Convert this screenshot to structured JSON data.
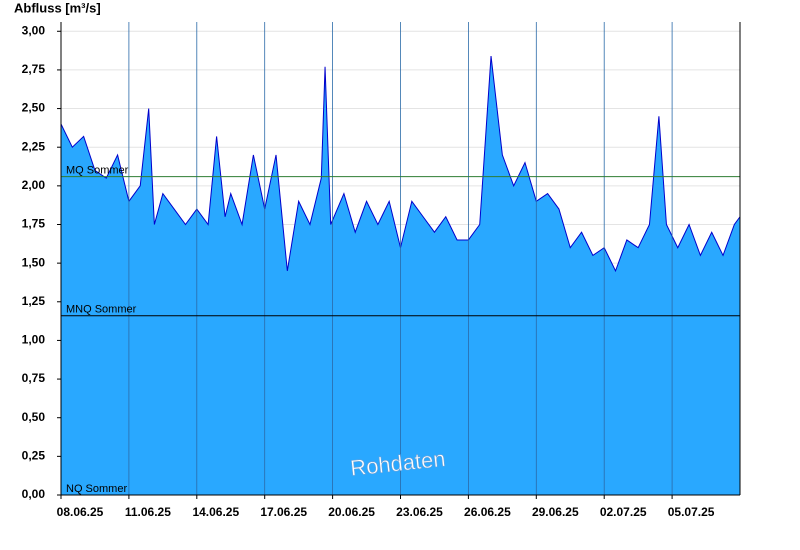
{
  "chart_data": {
    "type": "area",
    "y_label": "Abfluss [m³/s]",
    "watermark": "Rohdaten",
    "fill_color": "#29a8ff",
    "line_color": "#0000cc",
    "grid": true,
    "x": [
      "2025-06-08T00:00",
      "2025-06-08T12:00",
      "2025-06-09T00:00",
      "2025-06-09T12:00",
      "2025-06-10T00:00",
      "2025-06-10T12:00",
      "2025-06-11T00:00",
      "2025-06-11T12:00",
      "2025-06-11T21:00",
      "2025-06-12T03:00",
      "2025-06-12T12:00",
      "2025-06-13T00:00",
      "2025-06-13T12:00",
      "2025-06-14T00:00",
      "2025-06-14T12:00",
      "2025-06-14T21:00",
      "2025-06-15T06:00",
      "2025-06-15T12:00",
      "2025-06-16T00:00",
      "2025-06-16T12:00",
      "2025-06-17T00:00",
      "2025-06-17T12:00",
      "2025-06-18T00:00",
      "2025-06-18T12:00",
      "2025-06-19T00:00",
      "2025-06-19T12:00",
      "2025-06-19T16:00",
      "2025-06-19T22:00",
      "2025-06-20T12:00",
      "2025-06-21T00:00",
      "2025-06-21T12:00",
      "2025-06-22T00:00",
      "2025-06-22T12:00",
      "2025-06-23T00:00",
      "2025-06-23T12:00",
      "2025-06-24T00:00",
      "2025-06-24T12:00",
      "2025-06-25T00:00",
      "2025-06-25T12:00",
      "2025-06-26T00:00",
      "2025-06-26T12:00",
      "2025-06-27T00:00",
      "2025-06-27T12:00",
      "2025-06-28T00:00",
      "2025-06-28T12:00",
      "2025-06-29T00:00",
      "2025-06-29T12:00",
      "2025-06-30T00:00",
      "2025-06-30T12:00",
      "2025-07-01T00:00",
      "2025-07-01T12:00",
      "2025-07-02T00:00",
      "2025-07-02T12:00",
      "2025-07-03T00:00",
      "2025-07-03T12:00",
      "2025-07-04T00:00",
      "2025-07-04T10:00",
      "2025-07-04T18:00",
      "2025-07-05T06:00",
      "2025-07-05T18:00",
      "2025-07-06T06:00",
      "2025-07-06T18:00",
      "2025-07-07T06:00",
      "2025-07-07T18:00",
      "2025-07-08T00:00"
    ],
    "values": [
      2.4,
      2.25,
      2.32,
      2.1,
      2.05,
      2.2,
      1.9,
      2.0,
      2.5,
      1.75,
      1.95,
      1.85,
      1.75,
      1.85,
      1.75,
      2.32,
      1.8,
      1.95,
      1.75,
      2.2,
      1.85,
      2.2,
      1.45,
      1.9,
      1.75,
      2.05,
      2.77,
      1.75,
      1.95,
      1.7,
      1.9,
      1.75,
      1.9,
      1.6,
      1.9,
      1.8,
      1.7,
      1.8,
      1.65,
      1.65,
      1.75,
      2.84,
      2.2,
      2.0,
      2.15,
      1.9,
      1.95,
      1.85,
      1.6,
      1.7,
      1.55,
      1.6,
      1.45,
      1.65,
      1.6,
      1.75,
      2.45,
      1.75,
      1.6,
      1.75,
      1.55,
      1.7,
      1.55,
      1.75,
      1.8
    ],
    "xlim": [
      "2025-06-08T00:00",
      "2025-07-08T00:00"
    ],
    "xticks": [
      {
        "value": "2025-06-08T00:00",
        "label": "08.06.25"
      },
      {
        "value": "2025-06-11T00:00",
        "label": "11.06.25"
      },
      {
        "value": "2025-06-14T00:00",
        "label": "14.06.25"
      },
      {
        "value": "2025-06-17T00:00",
        "label": "17.06.25"
      },
      {
        "value": "2025-06-20T00:00",
        "label": "20.06.25"
      },
      {
        "value": "2025-06-23T00:00",
        "label": "23.06.25"
      },
      {
        "value": "2025-06-26T00:00",
        "label": "26.06.25"
      },
      {
        "value": "2025-06-29T00:00",
        "label": "29.06.25"
      },
      {
        "value": "2025-07-02T00:00",
        "label": "02.07.25"
      },
      {
        "value": "2025-07-05T00:00",
        "label": "05.07.25"
      }
    ],
    "ylim": [
      0,
      3.06
    ],
    "yticks": [
      {
        "value": 0,
        "label": "0,00"
      },
      {
        "value": 0.25,
        "label": "0,25"
      },
      {
        "value": 0.5,
        "label": "0,50"
      },
      {
        "value": 0.75,
        "label": "0,75"
      },
      {
        "value": 1,
        "label": "1,00"
      },
      {
        "value": 1.25,
        "label": "1,25"
      },
      {
        "value": 1.5,
        "label": "1,50"
      },
      {
        "value": 1.75,
        "label": "1,75"
      },
      {
        "value": 2,
        "label": "2,00"
      },
      {
        "value": 2.25,
        "label": "2,25"
      },
      {
        "value": 2.5,
        "label": "2,50"
      },
      {
        "value": 2.75,
        "label": "2,75"
      },
      {
        "value": 3,
        "label": "3,00"
      }
    ],
    "reference_lines": [
      {
        "label": "MQ Sommer",
        "value": 2.06,
        "color": "#2e7d32"
      },
      {
        "label": "MNQ Sommer",
        "value": 1.16,
        "color": "#000000"
      },
      {
        "label": "NQ Sommer",
        "value": 0,
        "color": "#000000"
      }
    ]
  }
}
